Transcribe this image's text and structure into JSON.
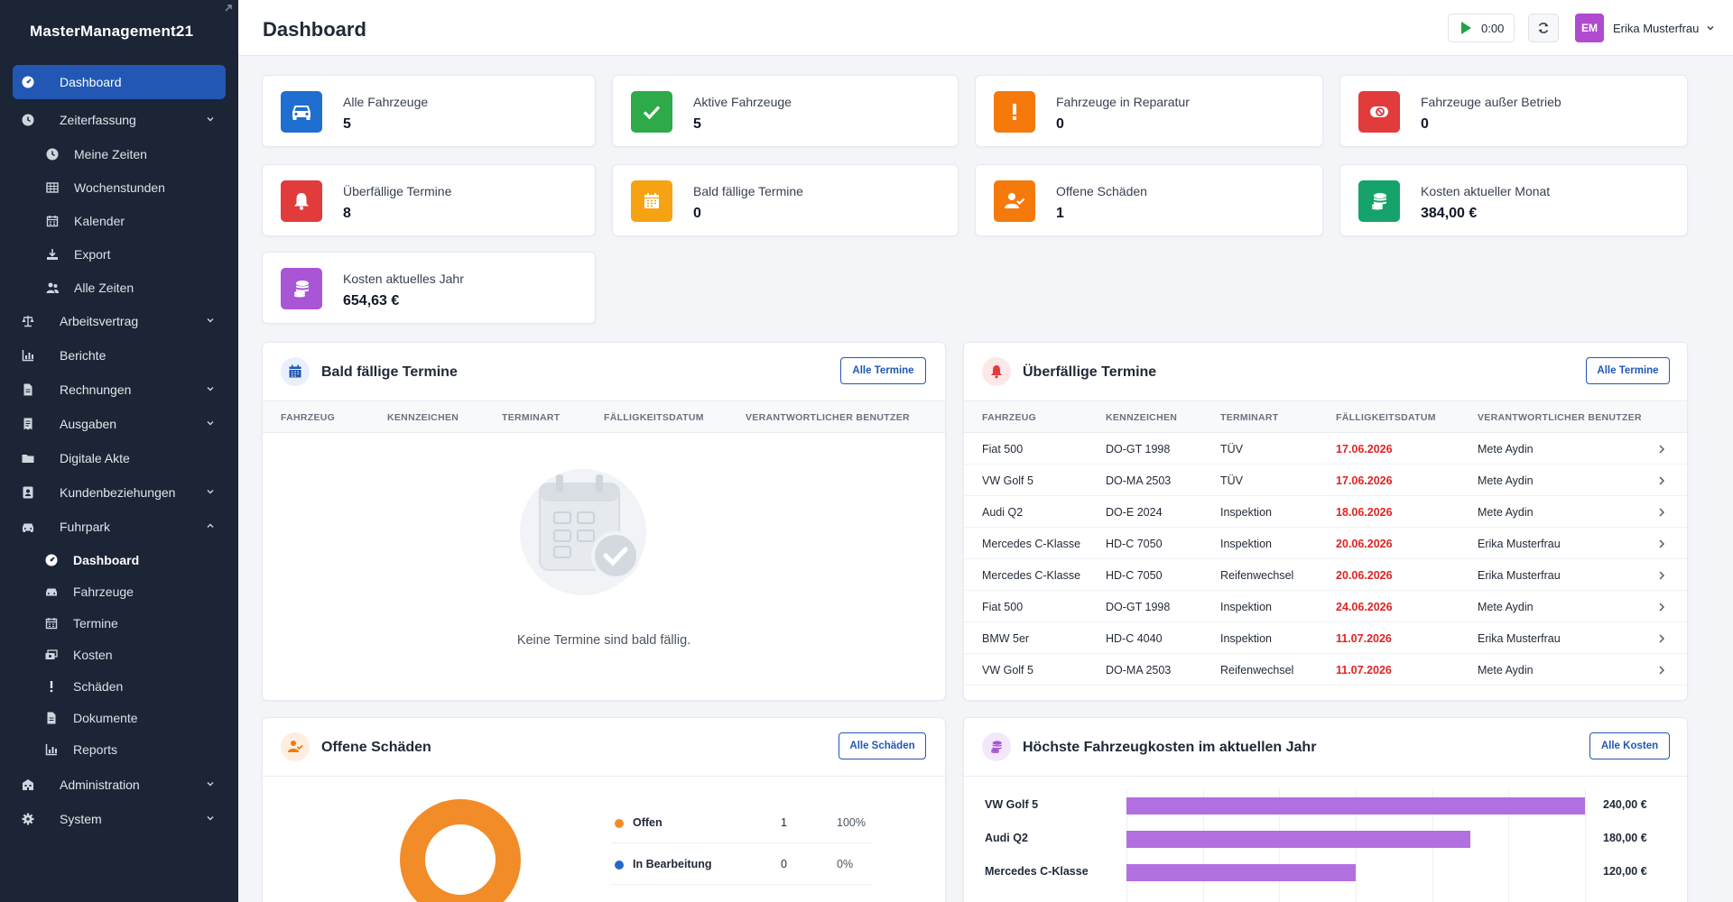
{
  "app": {
    "name": "MasterManagement21"
  },
  "header": {
    "title": "Dashboard",
    "timer": "0:00",
    "user": {
      "initials": "EM",
      "name": "Erika Musterfrau"
    }
  },
  "sidebar": {
    "items": [
      {
        "label": "Dashboard",
        "icon": "gauge-icon",
        "active": true
      },
      {
        "label": "Zeiterfassung",
        "icon": "clock-icon",
        "expanded": true,
        "children": [
          {
            "label": "Meine Zeiten",
            "icon": "clock-icon"
          },
          {
            "label": "Wochenstunden",
            "icon": "grid-icon"
          },
          {
            "label": "Kalender",
            "icon": "calendar-icon"
          },
          {
            "label": "Export",
            "icon": "download-icon"
          },
          {
            "label": "Alle Zeiten",
            "icon": "users-icon"
          }
        ]
      },
      {
        "label": "Arbeitsvertrag",
        "icon": "scale-icon"
      },
      {
        "label": "Berichte",
        "icon": "chart-icon"
      },
      {
        "label": "Rechnungen",
        "icon": "file-icon"
      },
      {
        "label": "Ausgaben",
        "icon": "receipt-icon"
      },
      {
        "label": "Digitale Akte",
        "icon": "folder-icon"
      },
      {
        "label": "Kundenbeziehungen",
        "icon": "contact-icon"
      },
      {
        "label": "Fuhrpark",
        "icon": "car-icon",
        "expanded": true,
        "children": [
          {
            "label": "Dashboard",
            "icon": "gauge-icon",
            "active": true
          },
          {
            "label": "Fahrzeuge",
            "icon": "car-icon"
          },
          {
            "label": "Termine",
            "icon": "calendar-icon"
          },
          {
            "label": "Kosten",
            "icon": "money-icon"
          },
          {
            "label": "Schäden",
            "icon": "exclamation-icon"
          },
          {
            "label": "Dokumente",
            "icon": "file-icon"
          },
          {
            "label": "Reports",
            "icon": "chart-icon"
          }
        ]
      },
      {
        "label": "Administration",
        "icon": "building-icon"
      },
      {
        "label": "System",
        "icon": "gear-icon"
      }
    ]
  },
  "stats": [
    {
      "label": "Alle Fahrzeuge",
      "value": "5",
      "color": "#1f6fd1",
      "icon": "car-icon"
    },
    {
      "label": "Aktive Fahrzeuge",
      "value": "5",
      "color": "#2eaa49",
      "icon": "check-icon"
    },
    {
      "label": "Fahrzeuge in Reparatur",
      "value": "0",
      "color": "#f57a0b",
      "icon": "exclamation-icon"
    },
    {
      "label": "Fahrzeuge außer Betrieb",
      "value": "0",
      "color": "#e23b3b",
      "icon": "ban-icon"
    },
    {
      "label": "Überfällige Termine",
      "value": "8",
      "color": "#e23b3b",
      "icon": "bell-icon"
    },
    {
      "label": "Bald fällige Termine",
      "value": "0",
      "color": "#f6a313",
      "icon": "calendar-icon"
    },
    {
      "label": "Offene Schäden",
      "value": "1",
      "color": "#f57a0b",
      "icon": "user-check-icon"
    },
    {
      "label": "Kosten aktueller Monat",
      "value": "384,00 €",
      "color": "#16a36b",
      "icon": "coins-icon"
    },
    {
      "label": "Kosten aktuelles Jahr",
      "value": "654,63 €",
      "color": "#a855d6",
      "icon": "coins-icon"
    }
  ],
  "upcoming": {
    "title": "Bald fällige Termine",
    "button": "Alle Termine",
    "columns": [
      "FAHRZEUG",
      "KENNZEICHEN",
      "TERMINART",
      "FÄLLIGKEITSDATUM",
      "VERANTWORTLICHER BENUTZER"
    ],
    "empty": "Keine Termine sind bald fällig."
  },
  "overdue": {
    "title": "Überfällige Termine",
    "button": "Alle Termine",
    "columns": [
      "FAHRZEUG",
      "KENNZEICHEN",
      "TERMINART",
      "FÄLLIGKEITSDATUM",
      "VERANTWORTLICHER BENUTZER"
    ],
    "rows": [
      [
        "Fiat 500",
        "DO-GT 1998",
        "TÜV",
        "17.06.2026",
        "Mete Aydin"
      ],
      [
        "VW Golf 5",
        "DO-MA 2503",
        "TÜV",
        "17.06.2026",
        "Mete Aydin"
      ],
      [
        "Audi Q2",
        "DO-E 2024",
        "Inspektion",
        "18.06.2026",
        "Mete Aydin"
      ],
      [
        "Mercedes C-Klasse",
        "HD-C 7050",
        "Inspektion",
        "20.06.2026",
        "Erika Musterfrau"
      ],
      [
        "Mercedes C-Klasse",
        "HD-C 7050",
        "Reifenwechsel",
        "20.06.2026",
        "Erika Musterfrau"
      ],
      [
        "Fiat 500",
        "DO-GT 1998",
        "Inspektion",
        "24.06.2026",
        "Mete Aydin"
      ],
      [
        "BMW 5er",
        "HD-C 4040",
        "Inspektion",
        "11.07.2026",
        "Erika Musterfrau"
      ],
      [
        "VW Golf 5",
        "DO-MA 2503",
        "Reifenwechsel",
        "11.07.2026",
        "Mete Aydin"
      ]
    ]
  },
  "damages": {
    "title": "Offene Schäden",
    "button": "Alle Schäden",
    "legend": [
      {
        "label": "Offen",
        "count": "1",
        "percent": "100%",
        "value": 1,
        "color": "#f28c28"
      },
      {
        "label": "In Bearbeitung",
        "count": "0",
        "percent": "0%",
        "value": 0,
        "color": "#2568c8"
      }
    ]
  },
  "costs": {
    "title": "Höchste Fahrzeugkosten im aktuellen Jahr",
    "button": "Alle Kosten",
    "chart_data": {
      "type": "bar",
      "orientation": "horizontal",
      "categories": [
        "VW Golf 5",
        "Audi Q2",
        "Mercedes C-Klasse"
      ],
      "values": [
        240.0,
        180.0,
        120.0
      ],
      "value_labels": [
        "240,00 €",
        "180,00 €",
        "120,00 €"
      ],
      "xlim": [
        0,
        240
      ],
      "grid": true,
      "color": "#b26fe0"
    }
  }
}
